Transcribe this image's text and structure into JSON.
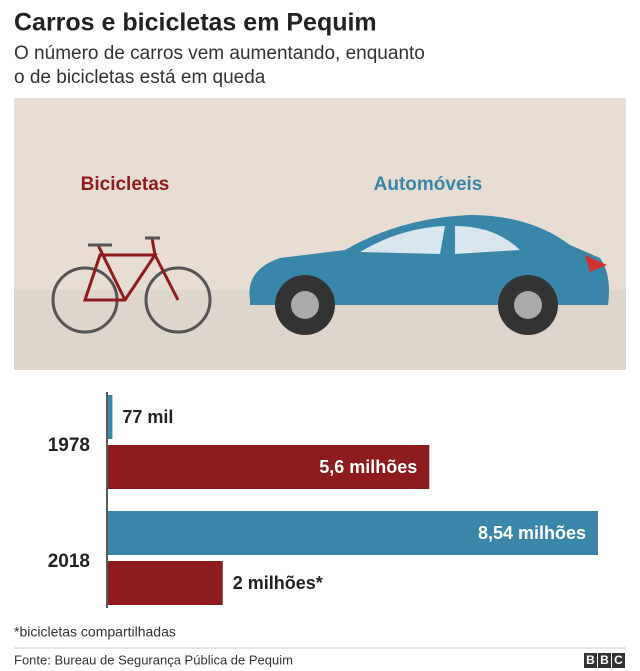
{
  "chart_data": {
    "type": "bar",
    "orientation": "horizontal",
    "title": "Carros e bicicletas em Pequim",
    "subtitle": [
      "O número de carros vem aumentando, enquanto",
      "o de bicicletas está em queda"
    ],
    "categories": [
      "1978",
      "2018"
    ],
    "series": [
      {
        "name": "Automóveis",
        "color": "#3a86a8",
        "values": [
          0.077,
          8.54
        ],
        "value_labels": [
          "77 mil",
          "8,54 milhões"
        ]
      },
      {
        "name": "Bicicletas",
        "color": "#8e1b1e",
        "values": [
          5.6,
          2
        ],
        "value_labels": [
          "5,6 milhões",
          "2 milhões*"
        ]
      }
    ],
    "footnote": "*bicicletas compartilhadas",
    "source": "Fonte: Bureau de Segurança Pública de Pequim",
    "logo": [
      "B",
      "B",
      "C"
    ]
  }
}
